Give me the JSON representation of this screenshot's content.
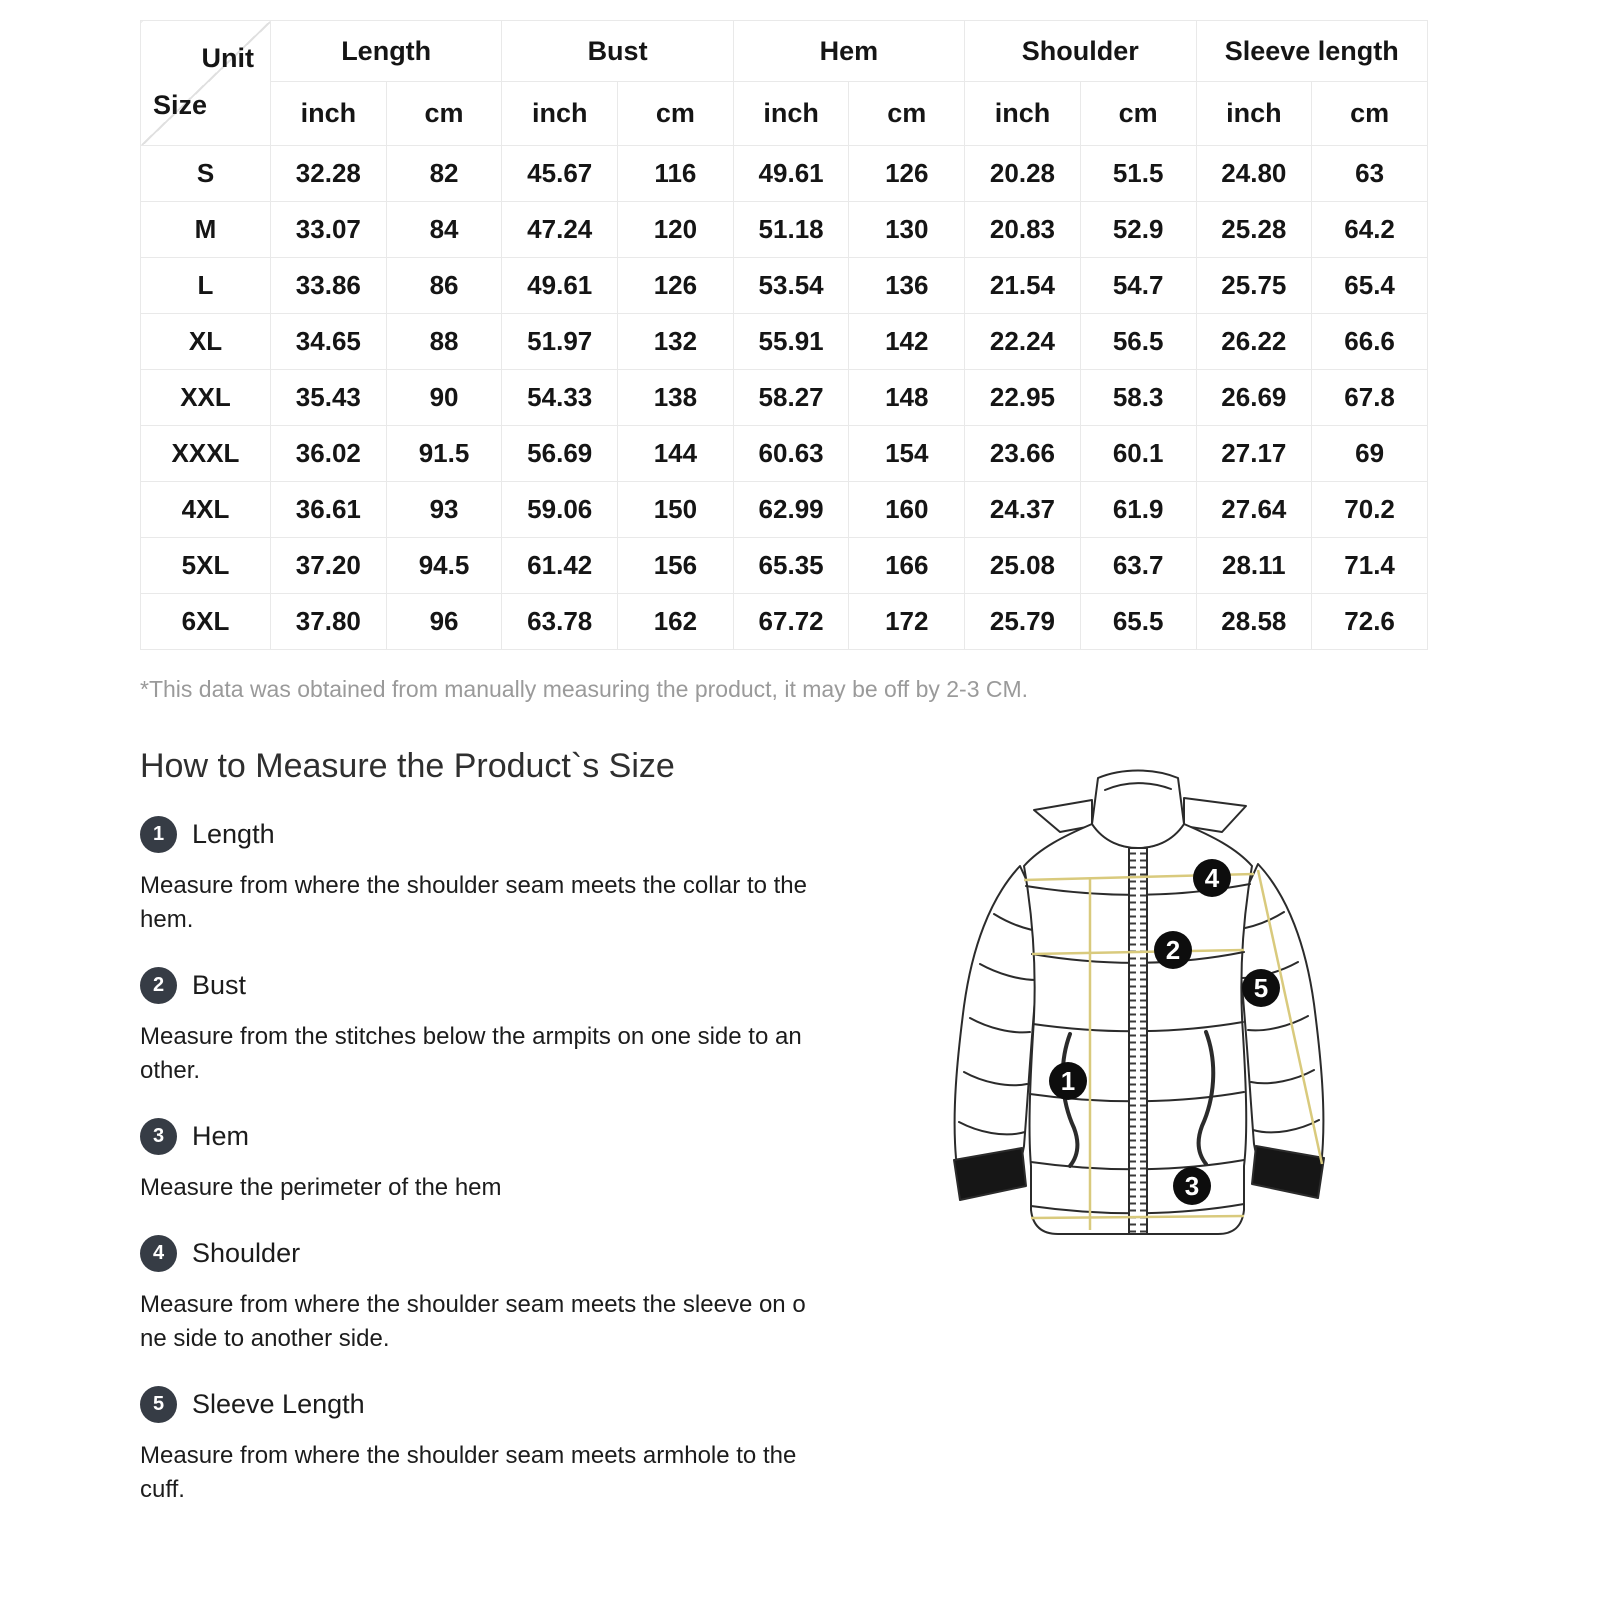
{
  "table": {
    "corner": {
      "top": "Unit",
      "bottom": "Size"
    },
    "groups": [
      {
        "label": "Length"
      },
      {
        "label": "Bust"
      },
      {
        "label": "Hem"
      },
      {
        "label": "Shoulder"
      },
      {
        "label": "Sleeve length"
      }
    ],
    "unit_headers": [
      "inch",
      "cm",
      "inch",
      "cm",
      "inch",
      "cm",
      "inch",
      "cm",
      "inch",
      "cm"
    ],
    "rows": [
      {
        "size": "S",
        "values": [
          "32.28",
          "82",
          "45.67",
          "116",
          "49.61",
          "126",
          "20.28",
          "51.5",
          "24.80",
          "63"
        ]
      },
      {
        "size": "M",
        "values": [
          "33.07",
          "84",
          "47.24",
          "120",
          "51.18",
          "130",
          "20.83",
          "52.9",
          "25.28",
          "64.2"
        ]
      },
      {
        "size": "L",
        "values": [
          "33.86",
          "86",
          "49.61",
          "126",
          "53.54",
          "136",
          "21.54",
          "54.7",
          "25.75",
          "65.4"
        ]
      },
      {
        "size": "XL",
        "values": [
          "34.65",
          "88",
          "51.97",
          "132",
          "55.91",
          "142",
          "22.24",
          "56.5",
          "26.22",
          "66.6"
        ]
      },
      {
        "size": "XXL",
        "values": [
          "35.43",
          "90",
          "54.33",
          "138",
          "58.27",
          "148",
          "22.95",
          "58.3",
          "26.69",
          "67.8"
        ]
      },
      {
        "size": "XXXL",
        "values": [
          "36.02",
          "91.5",
          "56.69",
          "144",
          "60.63",
          "154",
          "23.66",
          "60.1",
          "27.17",
          "69"
        ]
      },
      {
        "size": "4XL",
        "values": [
          "36.61",
          "93",
          "59.06",
          "150",
          "62.99",
          "160",
          "24.37",
          "61.9",
          "27.64",
          "70.2"
        ]
      },
      {
        "size": "5XL",
        "values": [
          "37.20",
          "94.5",
          "61.42",
          "156",
          "65.35",
          "166",
          "25.08",
          "63.7",
          "28.11",
          "71.4"
        ]
      },
      {
        "size": "6XL",
        "values": [
          "37.80",
          "96",
          "63.78",
          "162",
          "67.72",
          "172",
          "25.79",
          "65.5",
          "28.58",
          "72.6"
        ]
      }
    ],
    "note": "*This data was obtained from manually measuring the product, it may be off by 2-3 CM."
  },
  "guide": {
    "title": "How to Measure the Product`s Size",
    "items": [
      {
        "num": "1",
        "label": "Length",
        "desc": "Measure from where the shoulder seam meets the collar to the\nhem."
      },
      {
        "num": "2",
        "label": "Bust",
        "desc": "Measure from the stitches below the armpits on one side to an\nother."
      },
      {
        "num": "3",
        "label": "Hem",
        "desc": "Measure the perimeter of the hem"
      },
      {
        "num": "4",
        "label": "Shoulder",
        "desc": "Measure from where the shoulder seam meets the sleeve on o\nne side to another side."
      },
      {
        "num": "5",
        "label": "Sleeve Length",
        "desc": "Measure from where the shoulder seam meets armhole to the\ncuff."
      }
    ]
  },
  "colors": {
    "badge": "#363c45",
    "grid": "#e9e9e9",
    "note_gray": "#9a9a9a",
    "guide_line_yellow": "#d9ca7d",
    "outline": "#2b2b2b"
  }
}
